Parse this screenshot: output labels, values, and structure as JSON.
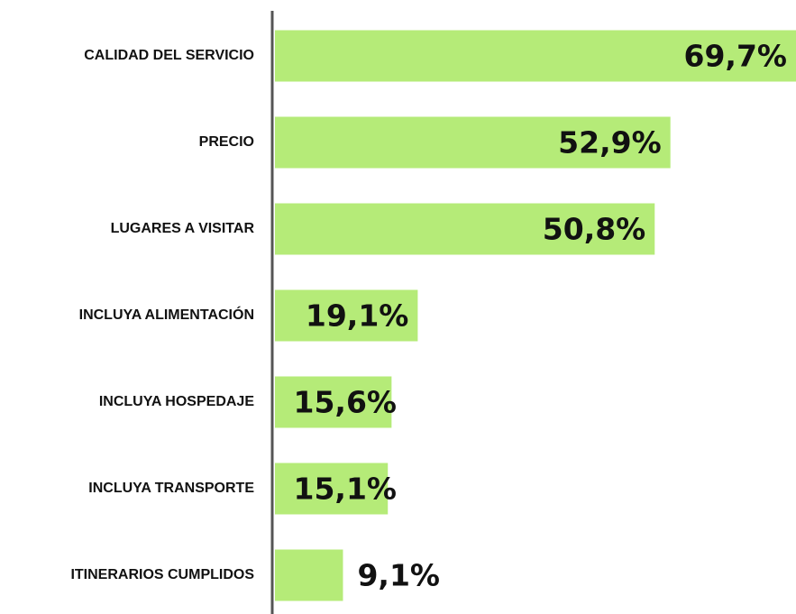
{
  "chart_data": {
    "type": "bar",
    "orientation": "horizontal",
    "categories": [
      "CALIDAD DEL SERVICIO",
      "PRECIO",
      "LUGARES A VISITAR",
      "INCLUYA ALIMENTACIÓN",
      "INCLUYA HOSPEDAJE",
      "INCLUYA TRANSPORTE",
      "ITINERARIOS CUMPLIDOS"
    ],
    "values": [
      69.7,
      52.9,
      50.8,
      19.1,
      15.6,
      15.1,
      9.1
    ],
    "value_labels": [
      "69,7%",
      "52,9%",
      "50,8%",
      "19,1%",
      "15,6%",
      "15,1%",
      "9,1%"
    ],
    "color": "#b5eb78"
  }
}
